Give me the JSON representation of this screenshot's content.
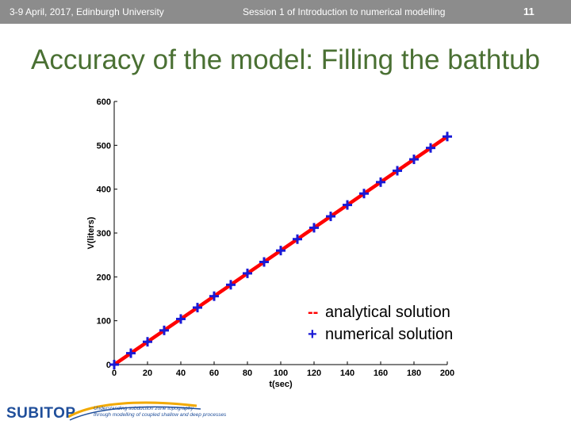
{
  "header": {
    "left": "3-9 April, 2017, Edinburgh University",
    "center": "Session 1 of Introduction to numerical modelling",
    "page_number": "11"
  },
  "slide": {
    "title": "Accuracy of the model: Filling the bathtub"
  },
  "colors": {
    "header_bg": "#8c8c8c",
    "title": "#4a7033",
    "analytical": "#ff0000",
    "numerical": "#1a1ad6",
    "logo": "#1f4e9a"
  },
  "chart_data": {
    "type": "line",
    "title": "",
    "xlabel": "t(sec)",
    "ylabel": "V(liters)",
    "xlim": [
      0,
      200
    ],
    "ylim": [
      0,
      600
    ],
    "xticks": [
      0,
      20,
      40,
      60,
      80,
      100,
      120,
      140,
      160,
      180,
      200
    ],
    "yticks": [
      0,
      100,
      200,
      300,
      400,
      500,
      600
    ],
    "grid": false,
    "legend_position": "bottom-right",
    "series": [
      {
        "name": "analytical solution",
        "legend_marker": "--",
        "style": "line",
        "color": "#ff0000",
        "x": [
          0,
          200
        ],
        "y": [
          0,
          520
        ]
      },
      {
        "name": "numerical solution",
        "legend_marker": "+",
        "style": "markers",
        "color": "#1a1ad6",
        "x": [
          0,
          10,
          20,
          30,
          40,
          50,
          60,
          70,
          80,
          90,
          100,
          110,
          120,
          130,
          140,
          150,
          160,
          170,
          180,
          190,
          200
        ],
        "y": [
          0,
          26,
          52,
          78,
          104,
          130,
          156,
          182,
          208,
          234,
          260,
          286,
          312,
          338,
          364,
          390,
          416,
          442,
          468,
          494,
          520
        ]
      }
    ]
  },
  "logo": {
    "text": "SUBITOP",
    "tagline_1": "Understanding subduction zone topography",
    "tagline_2": "through modelling of coupled shallow and deep processes"
  }
}
